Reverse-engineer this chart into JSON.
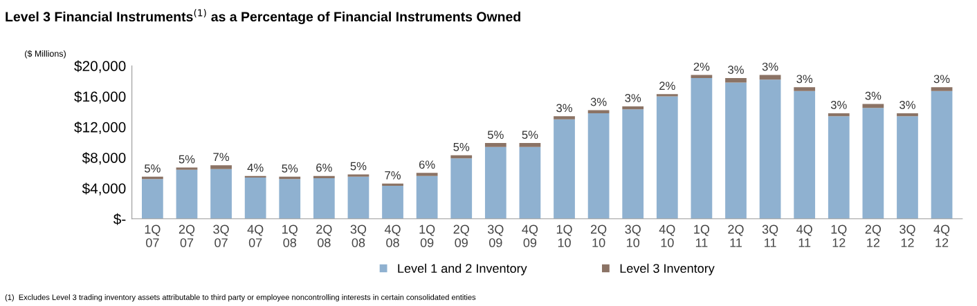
{
  "chart_data": {
    "type": "bar",
    "title": "Level 3 Financial Instruments$^{(1)}$ as a Percentage of Financial Instruments Owned",
    "categories": [
      "1Q\n07",
      "2Q\n07",
      "3Q\n07",
      "4Q\n07",
      "1Q\n08",
      "2Q\n08",
      "3Q\n08",
      "4Q\n08",
      "1Q\n09",
      "2Q\n09",
      "3Q\n09",
      "4Q\n09",
      "1Q\n10",
      "2Q\n10",
      "3Q\n10",
      "4Q\n10",
      "1Q\n11",
      "2Q\n11",
      "3Q\n11",
      "4Q\n11",
      "1Q\n12",
      "2Q\n12",
      "3Q\n12",
      "4Q\n12"
    ],
    "stacked": true,
    "series": [
      {
        "name": "Level 1 and 2 Inventory",
        "color": "#8fb1d0",
        "values": [
          5200,
          6400,
          6500,
          5400,
          5200,
          5300,
          5500,
          4300,
          5600,
          7900,
          9400,
          9400,
          13000,
          13800,
          14300,
          16000,
          18400,
          17800,
          18200,
          16700,
          13400,
          14500,
          13400,
          16700
        ]
      },
      {
        "name": "Level 3 Inventory",
        "color": "#8b7365",
        "values": [
          300,
          300,
          500,
          200,
          300,
          300,
          300,
          300,
          400,
          400,
          500,
          500,
          400,
          400,
          400,
          300,
          400,
          600,
          600,
          500,
          400,
          500,
          400,
          500
        ]
      }
    ],
    "ylim": [
      0,
      20000
    ],
    "yticks": [
      {
        "value": 0,
        "label": "$-"
      },
      {
        "value": 4000,
        "label": "$4,000"
      },
      {
        "value": 8000,
        "label": "$8,000"
      },
      {
        "value": 12000,
        "label": "$12,000"
      },
      {
        "value": 16000,
        "label": "$16,000"
      },
      {
        "value": 20000,
        "label": "$20,000"
      }
    ],
    "grid": false,
    "legend": "bottom",
    "annotations": [
      "($ Millions)",
      {
        "text": "5%",
        "x": "1Q\n07",
        "y": 5500
      },
      {
        "text": "5%",
        "x": "2Q\n07",
        "y": 6700
      },
      {
        "text": "7%",
        "x": "3Q\n07",
        "y": 7000
      },
      {
        "text": "4%",
        "x": "4Q\n07",
        "y": 5600
      },
      {
        "text": "5%",
        "x": "1Q\n08",
        "y": 5500
      },
      {
        "text": "6%",
        "x": "2Q\n08",
        "y": 5600
      },
      {
        "text": "5%",
        "x": "3Q\n08",
        "y": 5800
      },
      {
        "text": "7%",
        "x": "4Q\n08",
        "y": 4600
      },
      {
        "text": "6%",
        "x": "1Q\n09",
        "y": 6000
      },
      {
        "text": "5%",
        "x": "2Q\n09",
        "y": 8300
      },
      {
        "text": "5%",
        "x": "3Q\n09",
        "y": 9900
      },
      {
        "text": "5%",
        "x": "4Q\n09",
        "y": 9900
      },
      {
        "text": "3%",
        "x": "1Q\n10",
        "y": 13400
      },
      {
        "text": "3%",
        "x": "2Q\n10",
        "y": 14200
      },
      {
        "text": "3%",
        "x": "3Q\n10",
        "y": 14700
      },
      {
        "text": "2%",
        "x": "4Q\n10",
        "y": 16300
      },
      {
        "text": "2%",
        "x": "1Q\n11",
        "y": 18800
      },
      {
        "text": "3%",
        "x": "2Q\n11",
        "y": 18400
      },
      {
        "text": "3%",
        "x": "3Q\n11",
        "y": 18800
      },
      {
        "text": "3%",
        "x": "4Q\n11",
        "y": 17200
      },
      {
        "text": "3%",
        "x": "1Q\n12",
        "y": 13800
      },
      {
        "text": "3%",
        "x": "2Q\n12",
        "y": 15000
      },
      {
        "text": "3%",
        "x": "3Q\n12",
        "y": 13800
      },
      {
        "text": "3%",
        "x": "4Q\n12",
        "y": 17200
      },
      "(1)  Excludes Level 3 trading inventory assets attributable to third party or employee noncontrolling interests in certain consolidated entities"
    ]
  }
}
